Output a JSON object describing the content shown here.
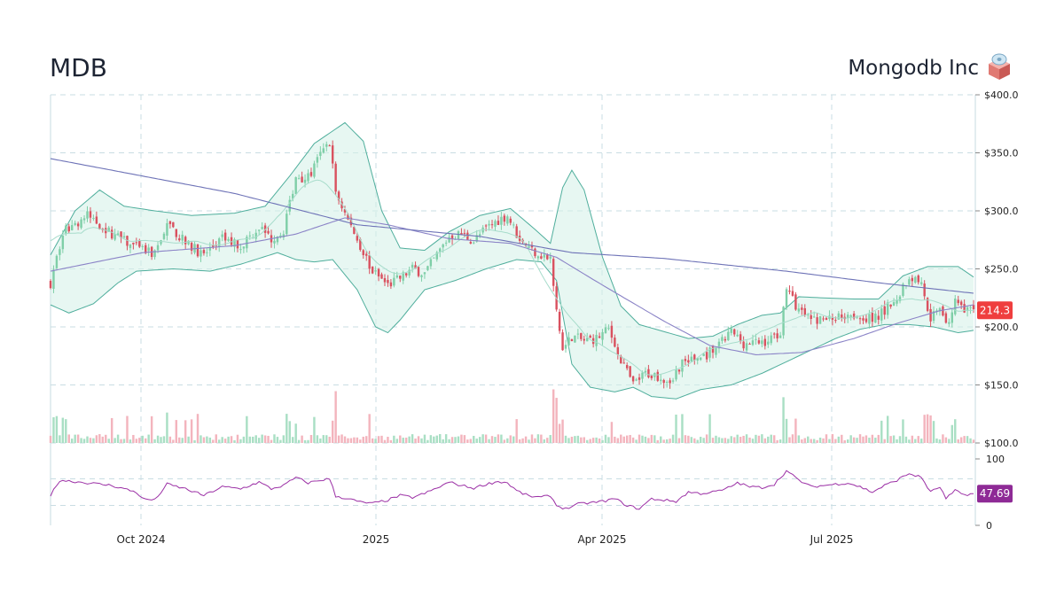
{
  "header": {
    "ticker": "MDB",
    "company": "Mongodb Inc",
    "logo_icon": "database-box-icon"
  },
  "colors": {
    "up": "#7fcfa8",
    "down": "#d9515f",
    "vol_up": "#a9dfc4",
    "vol_down": "#f3b4bd",
    "band_fill": "#d3f1e8",
    "band_line": "#4fae9c",
    "ma_short": "#a7dccb",
    "ma_long": "#6e73b7",
    "ma_mid": "#8b84c7",
    "rsi": "#9b2fa5",
    "price_badge": "#ef3e3e",
    "rsi_badge": "#8e2a96",
    "grid": "#c9dde3"
  },
  "chart_data": [
    {
      "type": "candlestick",
      "title": "",
      "x_ticks": [
        "Oct 2024",
        "2025",
        "Apr 2025",
        "Jul 2025"
      ],
      "y_ticks": [
        "$100.0",
        "$150.0",
        "$200.0",
        "$250.0",
        "$300.0",
        "$350.0",
        "$400.0"
      ],
      "ylim": [
        100,
        400
      ],
      "last_price": "214.3",
      "anchors": [
        {
          "i": 0,
          "p": 238
        },
        {
          "i": 4,
          "p": 282
        },
        {
          "i": 12,
          "p": 296
        },
        {
          "i": 20,
          "p": 280
        },
        {
          "i": 28,
          "p": 268
        },
        {
          "i": 34,
          "p": 262
        },
        {
          "i": 38,
          "p": 290
        },
        {
          "i": 44,
          "p": 272
        },
        {
          "i": 50,
          "p": 262
        },
        {
          "i": 56,
          "p": 276
        },
        {
          "i": 62,
          "p": 270
        },
        {
          "i": 68,
          "p": 286
        },
        {
          "i": 72,
          "p": 276
        },
        {
          "i": 76,
          "p": 284
        },
        {
          "i": 80,
          "p": 330
        },
        {
          "i": 84,
          "p": 328
        },
        {
          "i": 88,
          "p": 348
        },
        {
          "i": 91,
          "p": 360
        },
        {
          "i": 93,
          "p": 316
        },
        {
          "i": 97,
          "p": 292
        },
        {
          "i": 101,
          "p": 270
        },
        {
          "i": 105,
          "p": 248
        },
        {
          "i": 110,
          "p": 236
        },
        {
          "i": 114,
          "p": 242
        },
        {
          "i": 118,
          "p": 250
        },
        {
          "i": 122,
          "p": 246
        },
        {
          "i": 126,
          "p": 262
        },
        {
          "i": 130,
          "p": 278
        },
        {
          "i": 134,
          "p": 280
        },
        {
          "i": 138,
          "p": 274
        },
        {
          "i": 142,
          "p": 285
        },
        {
          "i": 146,
          "p": 292
        },
        {
          "i": 149,
          "p": 296
        },
        {
          "i": 152,
          "p": 280
        },
        {
          "i": 156,
          "p": 268
        },
        {
          "i": 160,
          "p": 262
        },
        {
          "i": 163,
          "p": 258
        },
        {
          "i": 165,
          "p": 212
        },
        {
          "i": 167,
          "p": 180
        },
        {
          "i": 170,
          "p": 192
        },
        {
          "i": 174,
          "p": 188
        },
        {
          "i": 178,
          "p": 190
        },
        {
          "i": 182,
          "p": 198
        },
        {
          "i": 186,
          "p": 172
        },
        {
          "i": 190,
          "p": 150
        },
        {
          "i": 194,
          "p": 160
        },
        {
          "i": 198,
          "p": 158
        },
        {
          "i": 202,
          "p": 154
        },
        {
          "i": 206,
          "p": 170
        },
        {
          "i": 210,
          "p": 172
        },
        {
          "i": 214,
          "p": 176
        },
        {
          "i": 218,
          "p": 184
        },
        {
          "i": 222,
          "p": 196
        },
        {
          "i": 226,
          "p": 186
        },
        {
          "i": 230,
          "p": 186
        },
        {
          "i": 234,
          "p": 188
        },
        {
          "i": 238,
          "p": 196
        },
        {
          "i": 240,
          "p": 232
        },
        {
          "i": 244,
          "p": 214
        },
        {
          "i": 248,
          "p": 206
        },
        {
          "i": 252,
          "p": 206
        },
        {
          "i": 256,
          "p": 208
        },
        {
          "i": 260,
          "p": 212
        },
        {
          "i": 264,
          "p": 210
        },
        {
          "i": 268,
          "p": 206
        },
        {
          "i": 272,
          "p": 214
        },
        {
          "i": 276,
          "p": 226
        },
        {
          "i": 280,
          "p": 244
        },
        {
          "i": 284,
          "p": 238
        },
        {
          "i": 287,
          "p": 208
        },
        {
          "i": 290,
          "p": 220
        },
        {
          "i": 292,
          "p": 200
        },
        {
          "i": 295,
          "p": 222
        },
        {
          "i": 298,
          "p": 212
        },
        {
          "i": 301,
          "p": 214
        }
      ],
      "ma_long_points": [
        {
          "i": 0,
          "p": 345
        },
        {
          "i": 60,
          "p": 315
        },
        {
          "i": 100,
          "p": 288
        },
        {
          "i": 140,
          "p": 278
        },
        {
          "i": 170,
          "p": 264
        },
        {
          "i": 200,
          "p": 259
        },
        {
          "i": 240,
          "p": 248
        },
        {
          "i": 270,
          "p": 238
        },
        {
          "i": 301,
          "p": 229
        }
      ],
      "ma_mid_points": [
        {
          "i": 0,
          "p": 248
        },
        {
          "i": 30,
          "p": 264
        },
        {
          "i": 60,
          "p": 270
        },
        {
          "i": 80,
          "p": 280
        },
        {
          "i": 96,
          "p": 294
        },
        {
          "i": 110,
          "p": 288
        },
        {
          "i": 130,
          "p": 276
        },
        {
          "i": 150,
          "p": 272
        },
        {
          "i": 165,
          "p": 260
        },
        {
          "i": 180,
          "p": 236
        },
        {
          "i": 200,
          "p": 205
        },
        {
          "i": 215,
          "p": 184
        },
        {
          "i": 230,
          "p": 176
        },
        {
          "i": 245,
          "p": 178
        },
        {
          "i": 262,
          "p": 190
        },
        {
          "i": 276,
          "p": 203
        },
        {
          "i": 290,
          "p": 214
        },
        {
          "i": 301,
          "p": 219
        }
      ],
      "bb_upper_points": [
        {
          "i": 0,
          "p": 262
        },
        {
          "i": 8,
          "p": 300
        },
        {
          "i": 16,
          "p": 318
        },
        {
          "i": 24,
          "p": 304
        },
        {
          "i": 34,
          "p": 300
        },
        {
          "i": 46,
          "p": 296
        },
        {
          "i": 60,
          "p": 298
        },
        {
          "i": 70,
          "p": 304
        },
        {
          "i": 78,
          "p": 330
        },
        {
          "i": 86,
          "p": 358
        },
        {
          "i": 96,
          "p": 376
        },
        {
          "i": 102,
          "p": 360
        },
        {
          "i": 108,
          "p": 300
        },
        {
          "i": 114,
          "p": 268
        },
        {
          "i": 122,
          "p": 266
        },
        {
          "i": 130,
          "p": 282
        },
        {
          "i": 140,
          "p": 296
        },
        {
          "i": 150,
          "p": 302
        },
        {
          "i": 158,
          "p": 284
        },
        {
          "i": 163,
          "p": 272
        },
        {
          "i": 167,
          "p": 320
        },
        {
          "i": 170,
          "p": 335
        },
        {
          "i": 174,
          "p": 318
        },
        {
          "i": 180,
          "p": 260
        },
        {
          "i": 186,
          "p": 218
        },
        {
          "i": 192,
          "p": 202
        },
        {
          "i": 200,
          "p": 196
        },
        {
          "i": 208,
          "p": 190
        },
        {
          "i": 216,
          "p": 192
        },
        {
          "i": 224,
          "p": 202
        },
        {
          "i": 232,
          "p": 210
        },
        {
          "i": 238,
          "p": 212
        },
        {
          "i": 244,
          "p": 226
        },
        {
          "i": 252,
          "p": 225
        },
        {
          "i": 262,
          "p": 224
        },
        {
          "i": 270,
          "p": 224
        },
        {
          "i": 278,
          "p": 244
        },
        {
          "i": 286,
          "p": 252
        },
        {
          "i": 296,
          "p": 252
        },
        {
          "i": 301,
          "p": 243
        }
      ],
      "bb_lower_points": [
        {
          "i": 0,
          "p": 219
        },
        {
          "i": 6,
          "p": 212
        },
        {
          "i": 14,
          "p": 220
        },
        {
          "i": 22,
          "p": 238
        },
        {
          "i": 28,
          "p": 248
        },
        {
          "i": 40,
          "p": 250
        },
        {
          "i": 52,
          "p": 248
        },
        {
          "i": 62,
          "p": 254
        },
        {
          "i": 74,
          "p": 264
        },
        {
          "i": 80,
          "p": 258
        },
        {
          "i": 86,
          "p": 256
        },
        {
          "i": 92,
          "p": 258
        },
        {
          "i": 100,
          "p": 232
        },
        {
          "i": 106,
          "p": 200
        },
        {
          "i": 110,
          "p": 195
        },
        {
          "i": 114,
          "p": 206
        },
        {
          "i": 122,
          "p": 232
        },
        {
          "i": 132,
          "p": 240
        },
        {
          "i": 142,
          "p": 250
        },
        {
          "i": 152,
          "p": 258
        },
        {
          "i": 160,
          "p": 256
        },
        {
          "i": 165,
          "p": 240
        },
        {
          "i": 170,
          "p": 168
        },
        {
          "i": 176,
          "p": 148
        },
        {
          "i": 184,
          "p": 144
        },
        {
          "i": 190,
          "p": 148
        },
        {
          "i": 196,
          "p": 140
        },
        {
          "i": 204,
          "p": 138
        },
        {
          "i": 212,
          "p": 146
        },
        {
          "i": 222,
          "p": 150
        },
        {
          "i": 232,
          "p": 160
        },
        {
          "i": 240,
          "p": 170
        },
        {
          "i": 248,
          "p": 180
        },
        {
          "i": 256,
          "p": 190
        },
        {
          "i": 264,
          "p": 198
        },
        {
          "i": 272,
          "p": 202
        },
        {
          "i": 280,
          "p": 202
        },
        {
          "i": 288,
          "p": 200
        },
        {
          "i": 296,
          "p": 195
        },
        {
          "i": 301,
          "p": 197
        }
      ]
    },
    {
      "type": "line",
      "name": "",
      "y_ticks": [
        "0",
        "100"
      ],
      "ylim": [
        0,
        100
      ],
      "guide_levels": [
        30,
        70
      ],
      "last_value": "47.69",
      "rsi_points": [
        {
          "i": 0,
          "p": 45
        },
        {
          "i": 3,
          "p": 68
        },
        {
          "i": 10,
          "p": 65
        },
        {
          "i": 20,
          "p": 60
        },
        {
          "i": 28,
          "p": 50
        },
        {
          "i": 30,
          "p": 40
        },
        {
          "i": 34,
          "p": 38
        },
        {
          "i": 38,
          "p": 62
        },
        {
          "i": 44,
          "p": 55
        },
        {
          "i": 50,
          "p": 45
        },
        {
          "i": 56,
          "p": 58
        },
        {
          "i": 62,
          "p": 55
        },
        {
          "i": 68,
          "p": 65
        },
        {
          "i": 72,
          "p": 55
        },
        {
          "i": 76,
          "p": 60
        },
        {
          "i": 80,
          "p": 72
        },
        {
          "i": 84,
          "p": 64
        },
        {
          "i": 88,
          "p": 68
        },
        {
          "i": 91,
          "p": 70
        },
        {
          "i": 93,
          "p": 44
        },
        {
          "i": 97,
          "p": 40
        },
        {
          "i": 101,
          "p": 35
        },
        {
          "i": 105,
          "p": 33
        },
        {
          "i": 110,
          "p": 38
        },
        {
          "i": 114,
          "p": 45
        },
        {
          "i": 118,
          "p": 42
        },
        {
          "i": 122,
          "p": 48
        },
        {
          "i": 126,
          "p": 56
        },
        {
          "i": 130,
          "p": 65
        },
        {
          "i": 134,
          "p": 60
        },
        {
          "i": 138,
          "p": 56
        },
        {
          "i": 142,
          "p": 62
        },
        {
          "i": 146,
          "p": 66
        },
        {
          "i": 149,
          "p": 64
        },
        {
          "i": 152,
          "p": 52
        },
        {
          "i": 156,
          "p": 44
        },
        {
          "i": 160,
          "p": 42
        },
        {
          "i": 163,
          "p": 45
        },
        {
          "i": 165,
          "p": 30
        },
        {
          "i": 168,
          "p": 25
        },
        {
          "i": 172,
          "p": 32
        },
        {
          "i": 176,
          "p": 34
        },
        {
          "i": 180,
          "p": 36
        },
        {
          "i": 184,
          "p": 40
        },
        {
          "i": 188,
          "p": 30
        },
        {
          "i": 192,
          "p": 25
        },
        {
          "i": 196,
          "p": 40
        },
        {
          "i": 200,
          "p": 38
        },
        {
          "i": 204,
          "p": 36
        },
        {
          "i": 208,
          "p": 50
        },
        {
          "i": 212,
          "p": 48
        },
        {
          "i": 216,
          "p": 50
        },
        {
          "i": 220,
          "p": 54
        },
        {
          "i": 224,
          "p": 64
        },
        {
          "i": 228,
          "p": 58
        },
        {
          "i": 232,
          "p": 57
        },
        {
          "i": 236,
          "p": 62
        },
        {
          "i": 240,
          "p": 82
        },
        {
          "i": 244,
          "p": 68
        },
        {
          "i": 248,
          "p": 58
        },
        {
          "i": 252,
          "p": 60
        },
        {
          "i": 256,
          "p": 62
        },
        {
          "i": 260,
          "p": 64
        },
        {
          "i": 264,
          "p": 58
        },
        {
          "i": 268,
          "p": 50
        },
        {
          "i": 272,
          "p": 60
        },
        {
          "i": 276,
          "p": 68
        },
        {
          "i": 280,
          "p": 78
        },
        {
          "i": 284,
          "p": 72
        },
        {
          "i": 287,
          "p": 50
        },
        {
          "i": 290,
          "p": 58
        },
        {
          "i": 292,
          "p": 40
        },
        {
          "i": 295,
          "p": 52
        },
        {
          "i": 298,
          "p": 46
        },
        {
          "i": 301,
          "p": 47.69
        }
      ]
    }
  ]
}
